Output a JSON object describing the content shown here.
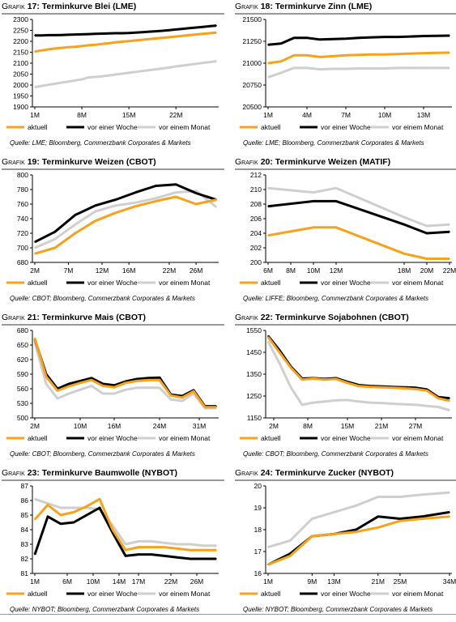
{
  "colors": {
    "orange": "#f7a21b",
    "black": "#000000",
    "gray": "#cfcfcf"
  },
  "charts": [
    {
      "id": "c17",
      "label": "Grafik",
      "num": "17:",
      "title": "Terminkurve Blei (LME)",
      "source": "Quelle: LME; Bloomberg, Commerzbank Corporates & Markets",
      "chart_data": {
        "type": "line",
        "x": [
          1,
          2,
          3,
          4,
          5,
          6,
          7,
          8,
          9,
          10,
          11,
          12,
          13,
          14,
          15,
          16,
          17,
          18,
          19,
          20,
          21,
          22,
          23,
          24,
          25,
          26,
          27,
          28
        ],
        "xticks": [
          "1M",
          "8M",
          "15M",
          "22M"
        ],
        "xtick_idx": [
          1,
          8,
          15,
          22
        ],
        "ylim": [
          1900,
          2300
        ],
        "yticks": [
          1900,
          1950,
          2000,
          2050,
          2100,
          2150,
          2200,
          2250,
          2300
        ],
        "series": [
          {
            "name": "aktuell",
            "color": "orange",
            "values": [
              2153,
              2158,
              2163,
              2167,
              2170,
              2173,
              2175,
              2178,
              2182,
              2184,
              2188,
              2191,
              2195,
              2198,
              2201,
              2204,
              2207,
              2210,
              2213,
              2216,
              2219,
              2222,
              2225,
              2228,
              2231,
              2234,
              2237,
              2240
            ]
          },
          {
            "name": "vor einer Woche",
            "color": "black",
            "values": [
              2227,
              2227,
              2228,
              2228,
              2229,
              2230,
              2231,
              2232,
              2233,
              2234,
              2235,
              2236,
              2237,
              2237,
              2238,
              2240,
              2242,
              2244,
              2246,
              2248,
              2251,
              2254,
              2257,
              2260,
              2263,
              2266,
              2269,
              2272
            ]
          },
          {
            "name": "vor einem Monat",
            "color": "gray",
            "values": [
              1990,
              1996,
              2001,
              2006,
              2011,
              2016,
              2021,
              2026,
              2035,
              2037,
              2040,
              2044,
              2048,
              2052,
              2056,
              2060,
              2064,
              2068,
              2072,
              2076,
              2080,
              2085,
              2089,
              2093,
              2097,
              2101,
              2105,
              2109
            ]
          }
        ]
      }
    },
    {
      "id": "c18",
      "label": "Grafik",
      "num": "18:",
      "title": "Terminkurve Zinn (LME)",
      "source": "Quelle: LME; Bloomberg, Commerzbank Corporates & Markets",
      "chart_data": {
        "type": "line",
        "x": [
          1,
          2,
          3,
          4,
          5,
          6,
          7,
          8,
          9,
          10,
          11,
          12,
          13,
          14,
          15
        ],
        "xticks": [
          "1M",
          "4M",
          "7M",
          "10M",
          "13M"
        ],
        "xtick_idx": [
          1,
          4,
          7,
          10,
          13
        ],
        "ylim": [
          20500,
          21500
        ],
        "yticks": [
          20500,
          20750,
          21000,
          21250,
          21500
        ],
        "series": [
          {
            "name": "aktuell",
            "color": "orange",
            "values": [
              21000,
              21020,
              21090,
              21090,
              21070,
              21080,
              21090,
              21095,
              21100,
              21100,
              21105,
              21110,
              21115,
              21118,
              21120
            ]
          },
          {
            "name": "vor einer Woche",
            "color": "black",
            "values": [
              21210,
              21225,
              21290,
              21290,
              21270,
              21275,
              21280,
              21290,
              21295,
              21300,
              21300,
              21305,
              21310,
              21312,
              21315
            ]
          },
          {
            "name": "vor einem Monat",
            "color": "gray",
            "values": [
              20840,
              20890,
              20945,
              20945,
              20930,
              20935,
              20935,
              20940,
              20940,
              20940,
              20945,
              20945,
              20945,
              20945,
              20945
            ]
          }
        ]
      }
    },
    {
      "id": "c19",
      "label": "Grafik",
      "num": "19:",
      "title": "Terminkurve Weizen (CBOT)",
      "source": "Quelle: CBOT; Bloomberg, Commerzbank Corporates & Markets",
      "chart_data": {
        "type": "line",
        "x": [
          2,
          5,
          8,
          11,
          14,
          17,
          20,
          23,
          26,
          29
        ],
        "xticks": [
          "2M",
          "7M",
          "12M",
          "16M",
          "22M",
          "26M"
        ],
        "xtick_pos": [
          2,
          7,
          12,
          16,
          22,
          26
        ],
        "ylim": [
          680,
          800
        ],
        "yticks": [
          680,
          700,
          720,
          740,
          760,
          780,
          800
        ],
        "series": [
          {
            "name": "aktuell",
            "color": "orange",
            "values": [
              692,
              700,
              720,
              737,
              748,
              757,
              764,
              770,
              760,
              766
            ]
          },
          {
            "name": "vor einer Woche",
            "color": "black",
            "values": [
              708,
              722,
              745,
              758,
              766,
              776,
              785,
              787,
              775,
              766
            ]
          },
          {
            "name": "vor einem Monat",
            "color": "gray",
            "values": [
              700,
              712,
              732,
              750,
              758,
              762,
              768,
              776,
              778,
              756
            ]
          }
        ]
      }
    },
    {
      "id": "c20",
      "label": "Grafik",
      "num": "20:",
      "title": "Terminkurve Weizen (MATIF)",
      "source": "Quelle: LIFFE; Bloomberg, Commerzbank Corporates & Markets",
      "chart_data": {
        "type": "line",
        "x": [
          6,
          10,
          12,
          18,
          20,
          22
        ],
        "xticks": [
          "6M",
          "8M",
          "10M",
          "12M",
          "18M",
          "20M",
          "22M"
        ],
        "xtick_pos": [
          6,
          8,
          10,
          12,
          18,
          20,
          22
        ],
        "ylim": [
          200,
          212
        ],
        "yticks": [
          200,
          202,
          204,
          206,
          208,
          210,
          212
        ],
        "series": [
          {
            "name": "aktuell",
            "color": "orange",
            "values": [
              203.7,
              204.8,
              204.8,
              201.2,
              200.5,
              200.5
            ]
          },
          {
            "name": "vor einer Woche",
            "color": "black",
            "values": [
              207.7,
              208.4,
              208.4,
              205.2,
              204.0,
              204.2
            ]
          },
          {
            "name": "vor einem Monat",
            "color": "gray",
            "values": [
              210.2,
              209.6,
              210.2,
              206.2,
              205.0,
              205.2
            ]
          }
        ]
      }
    },
    {
      "id": "c21",
      "label": "Grafik",
      "num": "21:",
      "title": "Terminkurve Mais (CBOT)",
      "source": "Quelle: CBOT; Bloomberg, Commerzbank Corporates & Markets",
      "chart_data": {
        "type": "line",
        "x": [
          2,
          4,
          6,
          8,
          10,
          12,
          14,
          16,
          18,
          20,
          22,
          24,
          26,
          28,
          30,
          32,
          34
        ],
        "xticks": [
          "2M",
          "10M",
          "16M",
          "24M",
          "31M"
        ],
        "xtick_pos": [
          2,
          10,
          16,
          24,
          31
        ],
        "ylim": [
          500,
          680
        ],
        "yticks": [
          500,
          530,
          560,
          590,
          620,
          650,
          680
        ],
        "series": [
          {
            "name": "aktuell",
            "color": "orange",
            "values": [
              664,
              585,
              556,
              565,
              572,
              578,
              566,
              563,
              572,
              576,
              578,
              578,
              546,
              542,
              555,
              522,
              522
            ]
          },
          {
            "name": "vor einer Woche",
            "color": "black",
            "values": [
              662,
              590,
              560,
              570,
              576,
              582,
              570,
              567,
              575,
              580,
              582,
              583,
              548,
              545,
              557,
              524,
              524
            ]
          },
          {
            "name": "vor einem Monat",
            "color": "gray",
            "values": [
              655,
              570,
              540,
              550,
              558,
              566,
              550,
              550,
              558,
              562,
              562,
              562,
              538,
              535,
              550,
              520,
              520
            ]
          }
        ]
      }
    },
    {
      "id": "c22",
      "label": "Grafik",
      "num": "22:",
      "title": "Terminkurve Sojabohnen (CBOT)",
      "source": "Quelle: CBOT; Bloomberg, Commerzbank Corporates & Markets",
      "chart_data": {
        "type": "line",
        "x": [
          1,
          3,
          5,
          7,
          9,
          11,
          13,
          15,
          17,
          19,
          21,
          23,
          25,
          27,
          29,
          31,
          33
        ],
        "xticks": [
          "2M",
          "8M",
          "15M",
          "21M",
          "27M"
        ],
        "xtick_pos": [
          2,
          8,
          15,
          21,
          27
        ],
        "ylim": [
          1150,
          1550
        ],
        "yticks": [
          1150,
          1250,
          1350,
          1450,
          1550
        ],
        "series": [
          {
            "name": "aktuell",
            "color": "orange",
            "values": [
              1520,
              1450,
              1380,
              1325,
              1330,
              1325,
              1328,
              1310,
              1295,
              1292,
              1290,
              1288,
              1285,
              1282,
              1275,
              1240,
              1228
            ]
          },
          {
            "name": "vor einer Woche",
            "color": "black",
            "values": [
              1525,
              1460,
              1385,
              1330,
              1332,
              1328,
              1332,
              1315,
              1300,
              1296,
              1294,
              1292,
              1290,
              1288,
              1280,
              1245,
              1240
            ]
          },
          {
            "name": "vor einem Monat",
            "color": "gray",
            "values": [
              1500,
              1400,
              1290,
              1210,
              1220,
              1225,
              1230,
              1232,
              1225,
              1220,
              1218,
              1215,
              1212,
              1210,
              1205,
              1200,
              1185
            ]
          }
        ]
      }
    },
    {
      "id": "c23",
      "label": "Grafik",
      "num": "23:",
      "title": "Terminkurve Baumwolle (NYBOT)",
      "source": "Quelle: NYBOT; Bloomberg, Commerzbank Corporates & Markets",
      "chart_data": {
        "type": "line",
        "x": [
          1,
          3,
          5,
          7,
          9,
          11,
          13,
          15,
          17,
          19,
          21,
          23,
          25,
          27,
          29
        ],
        "xticks": [
          "1M",
          "6M",
          "10M",
          "14M",
          "17M",
          "22M",
          "26M"
        ],
        "xtick_pos": [
          1,
          6,
          10,
          14,
          17,
          22,
          26
        ],
        "ylim": [
          81,
          87
        ],
        "yticks": [
          81,
          82,
          83,
          84,
          85,
          86,
          87
        ],
        "series": [
          {
            "name": "aktuell",
            "color": "orange",
            "values": [
              84.7,
              85.7,
              85.0,
              85.2,
              85.6,
              86.1,
              84.0,
              82.6,
              82.8,
              82.8,
              82.8,
              82.7,
              82.6,
              82.6,
              82.6
            ]
          },
          {
            "name": "vor einer Woche",
            "color": "black",
            "values": [
              82.3,
              84.9,
              84.4,
              84.5,
              85.0,
              85.5,
              83.8,
              82.2,
              82.3,
              82.3,
              82.2,
              82.1,
              82.0,
              82.0,
              82.0
            ]
          },
          {
            "name": "vor einem Monat",
            "color": "gray",
            "values": [
              86.1,
              85.8,
              85.5,
              85.5,
              85.5,
              85.4,
              84.3,
              83.0,
              83.2,
              83.2,
              83.1,
              83.0,
              83.0,
              82.9,
              82.9
            ]
          }
        ]
      }
    },
    {
      "id": "c24",
      "label": "Grafik",
      "num": "24:",
      "title": "Terminkurve Zucker (NYBOT)",
      "source": "Quelle: NYBOT; Bloomberg, Commerzbank Corporates & Markets",
      "chart_data": {
        "type": "line",
        "x": [
          1,
          5,
          9,
          13,
          17,
          21,
          25,
          29,
          34
        ],
        "xticks": [
          "1M",
          "9M",
          "13M",
          "21M",
          "25M",
          "34M"
        ],
        "xtick_pos": [
          1,
          9,
          13,
          21,
          25,
          34
        ],
        "ylim": [
          16,
          20
        ],
        "yticks": [
          16,
          17,
          18,
          19,
          20
        ],
        "series": [
          {
            "name": "aktuell",
            "color": "orange",
            "values": [
              16.4,
              16.8,
              17.7,
              17.8,
              17.9,
              18.1,
              18.4,
              18.5,
              18.6
            ]
          },
          {
            "name": "vor einer Woche",
            "color": "black",
            "values": [
              16.4,
              16.9,
              17.7,
              17.8,
              18.0,
              18.6,
              18.5,
              18.6,
              18.8
            ]
          },
          {
            "name": "vor einem Monat",
            "color": "gray",
            "values": [
              17.2,
              17.5,
              18.5,
              18.8,
              19.1,
              19.5,
              19.5,
              19.6,
              19.7
            ]
          }
        ]
      }
    }
  ]
}
